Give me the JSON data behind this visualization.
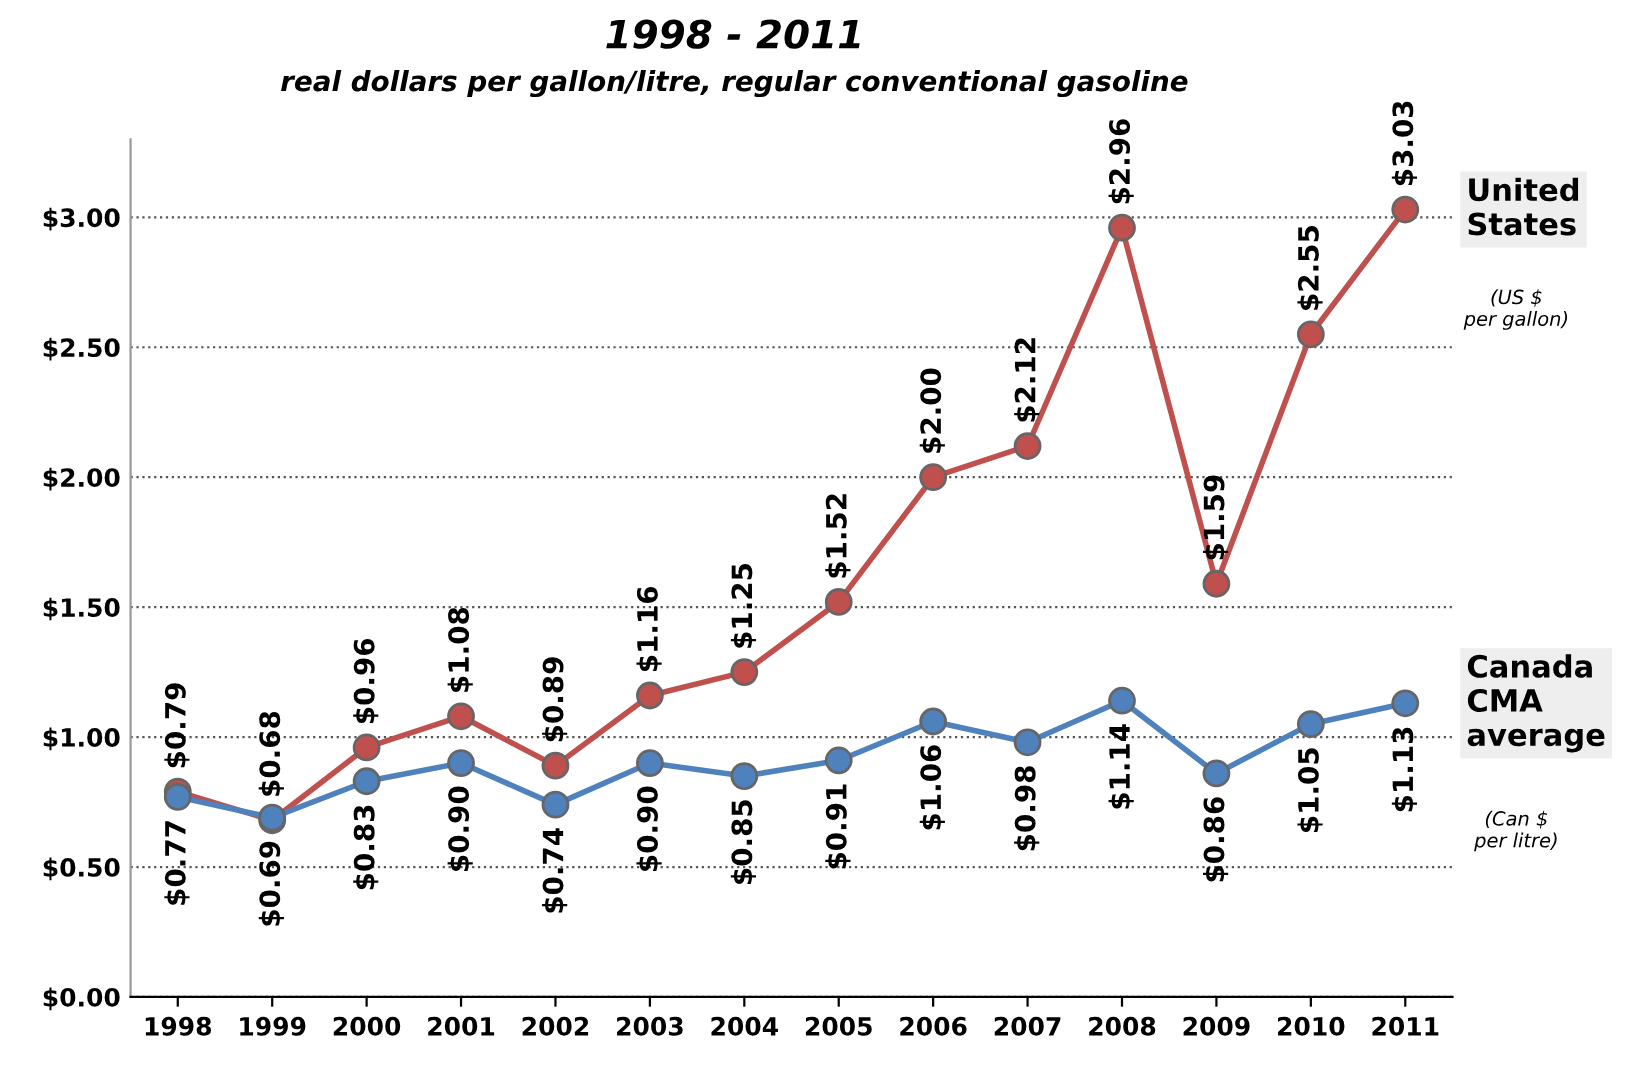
{
  "chart_data": {
    "type": "line",
    "title": "1998 - 2011",
    "subtitle": "real dollars per gallon/litre, regular conventional gasoline",
    "categories": [
      "1998",
      "1999",
      "2000",
      "2001",
      "2002",
      "2003",
      "2004",
      "2005",
      "2006",
      "2007",
      "2008",
      "2009",
      "2010",
      "2011"
    ],
    "series": [
      {
        "name": "United States",
        "color": "#c0504d",
        "values": [
          0.79,
          0.68,
          0.96,
          1.08,
          0.89,
          1.16,
          1.25,
          1.52,
          2.0,
          2.12,
          2.96,
          1.59,
          2.55,
          3.03
        ],
        "value_labels": [
          "$0.79",
          "$0.68",
          "$0.96",
          "$1.08",
          "$0.89",
          "$1.16",
          "$1.25",
          "$1.52",
          "$2.00",
          "$2.12",
          "$2.96",
          "$1.59",
          "$2.55",
          "$3.03"
        ]
      },
      {
        "name": "Canada CMA average",
        "color": "#4f81bd",
        "values": [
          0.77,
          0.69,
          0.83,
          0.9,
          0.74,
          0.9,
          0.85,
          0.91,
          1.06,
          0.98,
          1.14,
          0.86,
          1.05,
          1.13
        ],
        "value_labels": [
          "$0.77",
          "$0.69",
          "$0.83",
          "$0.90",
          "$0.74",
          "$0.90",
          "$0.85",
          "$0.91",
          "$1.06",
          "$0.98",
          "$1.14",
          "$0.86",
          "$1.05",
          "$1.13"
        ]
      }
    ],
    "annotations": [
      "(US $ per gallon)",
      "(Can $ per litre)"
    ],
    "ylim": [
      0,
      3.3
    ],
    "yticks": [
      {
        "value": 0,
        "label": "$0.00"
      },
      {
        "value": 0.5,
        "label": "$0.50"
      },
      {
        "value": 1,
        "label": "$1.00"
      },
      {
        "value": 1.5,
        "label": "$1.50"
      },
      {
        "value": 2,
        "label": "$2.00"
      },
      {
        "value": 2.5,
        "label": "$2.50"
      },
      {
        "value": 3,
        "label": "$3.00"
      }
    ],
    "grid": "y",
    "legend": false,
    "marker": "circle",
    "line_style": "solid"
  }
}
